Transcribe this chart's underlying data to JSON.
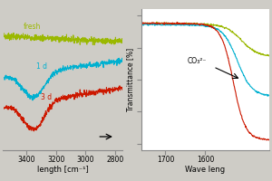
{
  "background_color": "#ceccc6",
  "left_panel": {
    "xticks": [
      3400,
      3200,
      3000,
      2800
    ],
    "xlabel": "length [cm⁻¹]",
    "bg": "#ceccc6",
    "fresh_color": "#9ab800",
    "blue_color": "#00b0d0",
    "red_color": "#cc1800",
    "fresh_label": "fresh",
    "blue_label": "1 d",
    "red_label": "3 d"
  },
  "right_panel": {
    "xticks": [
      1700,
      1600
    ],
    "xlabel": "Wave leng",
    "ylabel": "Transmittance [%]",
    "bg": "#ffffff",
    "fresh_color": "#9ab800",
    "blue_color": "#00b0d0",
    "red_color": "#cc1800",
    "annotation": "CO₃²⁻"
  }
}
